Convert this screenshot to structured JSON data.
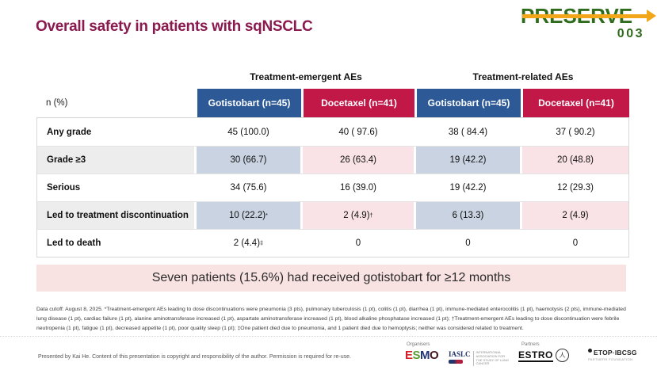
{
  "slide": {
    "title": "Overall safety in patients with sqNSCLC",
    "logo": {
      "word": "PRESERVE",
      "number": "003"
    }
  },
  "table": {
    "unit_label": "n (%)",
    "group_headers": [
      "Treatment-emergent AEs",
      "Treatment-related AEs"
    ],
    "columns": [
      "Gotistobart (n=45)",
      "Docetaxel (n=41)",
      "Gotistobart (n=45)",
      "Docetaxel (n=41)"
    ],
    "rows": [
      {
        "label": "Any grade",
        "values": [
          "45 (100.0)",
          "40 ( 97.6)",
          "38 ( 84.4)",
          "37 ( 90.2)"
        ]
      },
      {
        "label": "Grade ≥3",
        "values": [
          "30 (66.7)",
          "26 (63.4)",
          "19 (42.2)",
          "20 (48.8)"
        ]
      },
      {
        "label": "Serious",
        "values": [
          "34 (75.6)",
          "16 (39.0)",
          "19 (42.2)",
          "12 (29.3)"
        ]
      },
      {
        "label": "Led to treatment discontinuation",
        "values": [
          "10 (22.2)*",
          "2 (4.9)†",
          "6 (13.3)",
          "2 (4.9)"
        ]
      },
      {
        "label": "Led to death",
        "values": [
          "2 (4.4)‡",
          "0",
          "0",
          "0"
        ]
      }
    ]
  },
  "banner": {
    "text": "Seven patients (15.6%) had received gotistobart for ≥12 months"
  },
  "footnote": "Data cutoff: August 8, 2025.  *Treatment-emergent AEs leading to dose discontinuations were pneumonia (3 pts), pulmonary tuberculosis (1 pt), colitis (1 pt), diarrhea (1 pt), immune-mediated enterocolitis (1 pt), haemotysis (2 pts), immune-mediated lung disease (1 pt), cardiac failure (1 pt), alanine aminotransferase increased (1 pt), aspartate aminotransferase increased (1 pt), blood alkaline phosphatase increased (1 pt); †Treatment-emergent AEs leading to dose discontinuation were febrile neutropenia (1 pt), fatigue (1 pt), decreased appetite (1 pt), poor quality sleep (1 pt); ‡One patient died due to pneumonia, and 1 patient died due to hemoptysis; neither was considered related to treatment.",
  "footer": {
    "attribution": "Presented by Kai He. Content of this presentation is copyright and responsibility of the author. Permission is required for re-use.",
    "organisers_label": "Organisers",
    "partners_label": "Partners",
    "esmo": "ESMO",
    "iaslc": "IASLC",
    "iaslc_sub": "INTERNATIONAL ASSOCIATION FOR THE STUDY OF LUNG CANCER",
    "estro": "ESTRO",
    "etop": "ETOP·IBCSG",
    "etop_sub": "PARTNERS FOUNDATION"
  },
  "colors": {
    "title": "#8A1A4F",
    "header_blue": "#2D5A97",
    "header_red": "#C21848",
    "cell_blue": "#C9D3E2",
    "cell_pink": "#FAE3E7",
    "label_gray": "#EDEDED",
    "banner_pink": "#F9E2E2",
    "logo_green": "#2F6B1D",
    "logo_orange": "#F2A71B"
  }
}
